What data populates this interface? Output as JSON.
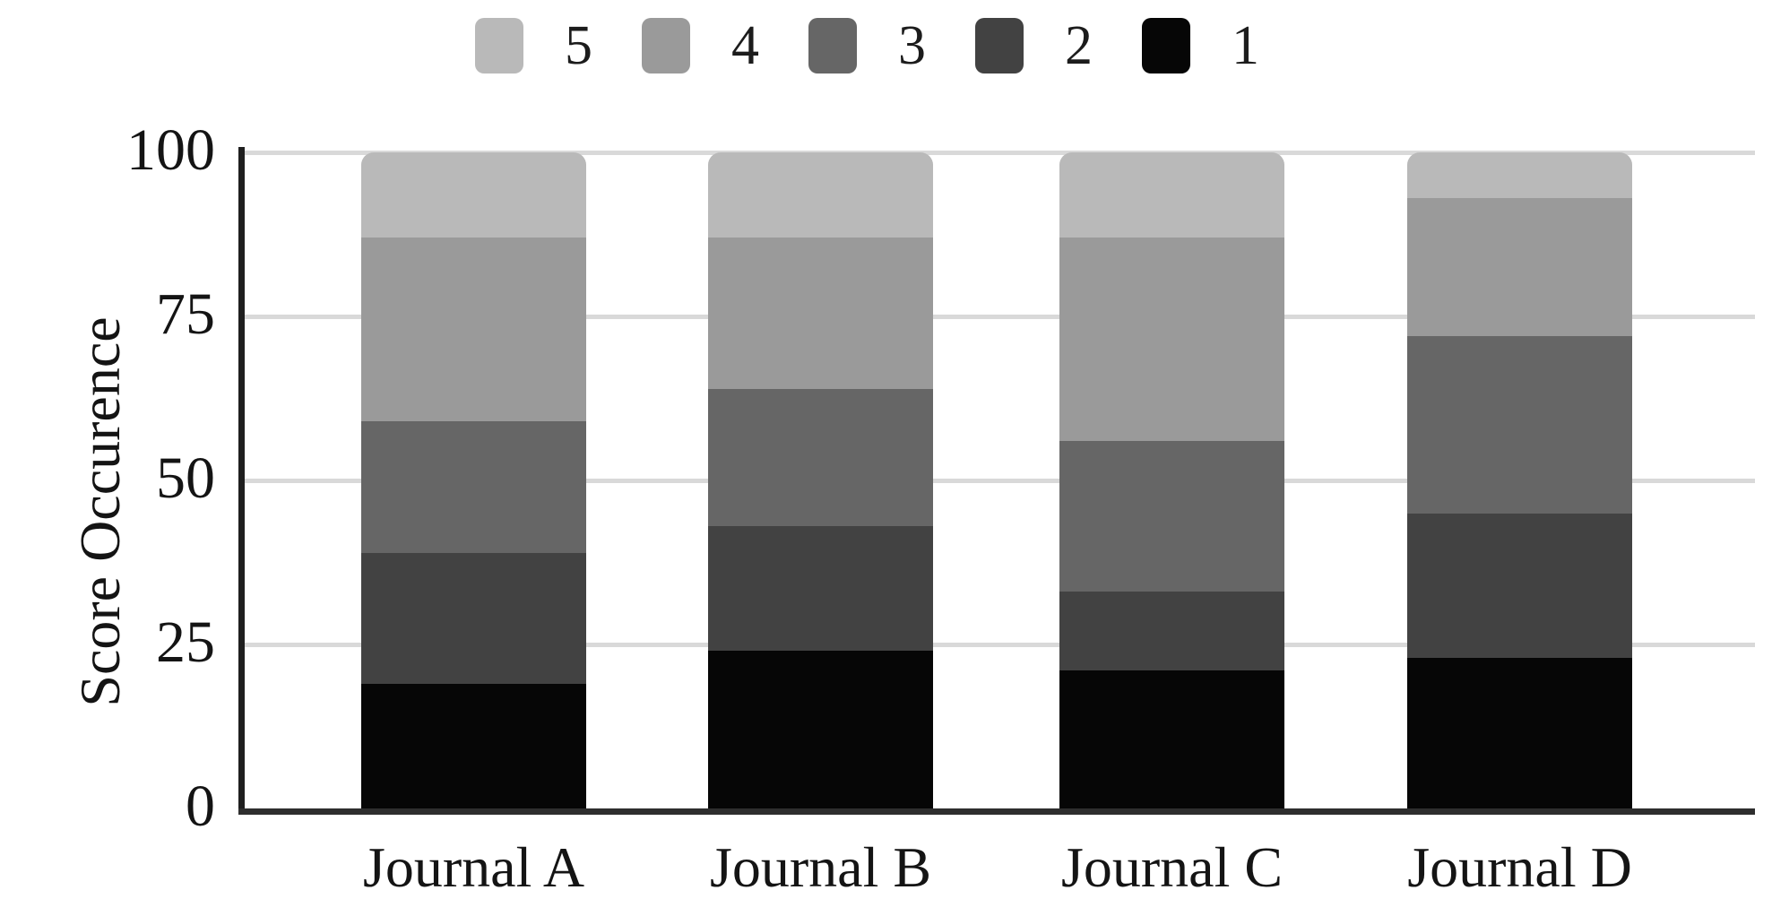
{
  "figure": {
    "ylabel": "Score Occurence",
    "x_labels": [
      "Journal A",
      "Journal B",
      "Journal C",
      "Journal D"
    ],
    "y_tick_labels": [
      "100",
      "75",
      "50",
      "25",
      "0"
    ],
    "legend_labels": [
      "5",
      "4",
      "3",
      "2",
      "1"
    ],
    "colors": {
      "score5": "#b9b9b9",
      "score4": "#9a9a9a",
      "score3": "#666666",
      "score2": "#424242",
      "score1": "#060606",
      "gridline": "#d9d9d9",
      "axis": "#1f1f1f",
      "text": "#141414"
    }
  },
  "chart_data": {
    "type": "bar",
    "stacked": true,
    "title": "",
    "xlabel": "",
    "ylabel": "Score Occurence",
    "categories": [
      "Journal A",
      "Journal B",
      "Journal C",
      "Journal D"
    ],
    "series": [
      {
        "name": "5",
        "color": "#b9b9b9",
        "values": [
          13,
          13,
          13,
          7
        ]
      },
      {
        "name": "4",
        "color": "#9a9a9a",
        "values": [
          28,
          23,
          31,
          21
        ]
      },
      {
        "name": "3",
        "color": "#666666",
        "values": [
          20,
          21,
          23,
          27
        ]
      },
      {
        "name": "2",
        "color": "#424242",
        "values": [
          20,
          19,
          12,
          22
        ]
      },
      {
        "name": "1",
        "color": "#060606",
        "values": [
          19,
          24,
          21,
          23
        ]
      }
    ],
    "stack_totals": [
      100,
      100,
      100,
      100
    ],
    "ylim": [
      0,
      100
    ],
    "yticks": [
      0,
      25,
      50,
      75,
      100
    ],
    "grid": true,
    "legend_position": "top"
  }
}
